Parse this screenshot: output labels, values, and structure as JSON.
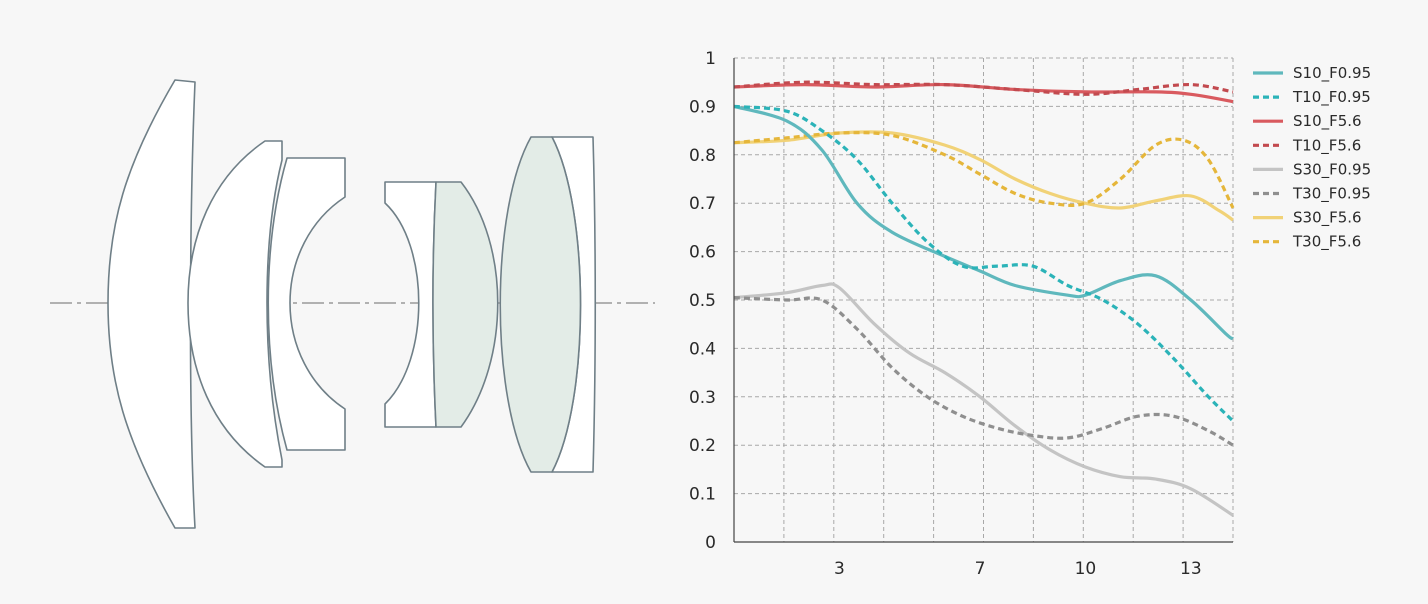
{
  "chart_data": {
    "type": "line",
    "title": "",
    "xlabel": "",
    "ylabel": "",
    "xlim": [
      0,
      14.2
    ],
    "ylim": [
      0,
      1
    ],
    "x_tick_labels": [
      {
        "value": 3,
        "label": "3"
      },
      {
        "value": 7,
        "label": "7"
      },
      {
        "value": 10,
        "label": "10"
      },
      {
        "value": 13,
        "label": "13"
      }
    ],
    "y_tick_labels": [
      {
        "value": 0,
        "label": "0"
      },
      {
        "value": 0.1,
        "label": "0.1"
      },
      {
        "value": 0.2,
        "label": "0.2"
      },
      {
        "value": 0.3,
        "label": "0.3"
      },
      {
        "value": 0.4,
        "label": "0.4"
      },
      {
        "value": 0.5,
        "label": "0.5"
      },
      {
        "value": 0.6,
        "label": "0.6"
      },
      {
        "value": 0.7,
        "label": "0.7"
      },
      {
        "value": 0.8,
        "label": "0.8"
      },
      {
        "value": 0.9,
        "label": "0.9"
      },
      {
        "value": 1,
        "label": "1"
      }
    ],
    "grid": true,
    "legend_position": "right",
    "series": [
      {
        "name": "S10_F0.95",
        "color": "#5fb8bd",
        "dash": false,
        "points": [
          [
            0,
            0.9
          ],
          [
            1.5,
            0.87
          ],
          [
            2.5,
            0.81
          ],
          [
            3.5,
            0.7
          ],
          [
            4.5,
            0.64
          ],
          [
            6,
            0.59
          ],
          [
            7,
            0.56
          ],
          [
            8,
            0.53
          ],
          [
            9.5,
            0.51
          ],
          [
            10,
            0.51
          ],
          [
            11,
            0.54
          ],
          [
            12,
            0.55
          ],
          [
            13,
            0.5
          ],
          [
            14,
            0.43
          ],
          [
            14.2,
            0.42
          ]
        ]
      },
      {
        "name": "T10_F0.95",
        "color": "#2bb3b8",
        "dash": true,
        "points": [
          [
            0,
            0.9
          ],
          [
            1.5,
            0.89
          ],
          [
            2.5,
            0.85
          ],
          [
            3.5,
            0.79
          ],
          [
            4.5,
            0.7
          ],
          [
            5.5,
            0.62
          ],
          [
            6.5,
            0.57
          ],
          [
            7.5,
            0.57
          ],
          [
            8.5,
            0.57
          ],
          [
            9.5,
            0.53
          ],
          [
            10.5,
            0.5
          ],
          [
            11.5,
            0.45
          ],
          [
            12.5,
            0.38
          ],
          [
            13.5,
            0.3
          ],
          [
            14.2,
            0.25
          ]
        ]
      },
      {
        "name": "S10_F5.6",
        "color": "#d95a5f",
        "dash": false,
        "points": [
          [
            0,
            0.94
          ],
          [
            2,
            0.945
          ],
          [
            4,
            0.94
          ],
          [
            6,
            0.945
          ],
          [
            8,
            0.935
          ],
          [
            10,
            0.93
          ],
          [
            12,
            0.93
          ],
          [
            13,
            0.925
          ],
          [
            14.2,
            0.91
          ]
        ]
      },
      {
        "name": "T10_F5.6",
        "color": "#c24a4f",
        "dash": true,
        "points": [
          [
            0,
            0.94
          ],
          [
            2,
            0.95
          ],
          [
            4,
            0.945
          ],
          [
            6,
            0.945
          ],
          [
            8,
            0.935
          ],
          [
            10,
            0.925
          ],
          [
            11.5,
            0.935
          ],
          [
            13,
            0.945
          ],
          [
            14.2,
            0.93
          ]
        ]
      },
      {
        "name": "S30_F0.95",
        "color": "#c4c4c4",
        "dash": false,
        "points": [
          [
            0,
            0.505
          ],
          [
            1.5,
            0.515
          ],
          [
            2.5,
            0.53
          ],
          [
            3,
            0.525
          ],
          [
            4,
            0.45
          ],
          [
            5,
            0.39
          ],
          [
            6,
            0.35
          ],
          [
            7,
            0.3
          ],
          [
            8,
            0.24
          ],
          [
            9,
            0.19
          ],
          [
            10,
            0.155
          ],
          [
            11,
            0.135
          ],
          [
            12,
            0.13
          ],
          [
            13,
            0.11
          ],
          [
            14.2,
            0.055
          ]
        ]
      },
      {
        "name": "T30_F0.95",
        "color": "#8f8f8f",
        "dash": true,
        "points": [
          [
            0,
            0.505
          ],
          [
            1.5,
            0.5
          ],
          [
            2.5,
            0.5
          ],
          [
            3.5,
            0.44
          ],
          [
            4.5,
            0.36
          ],
          [
            5.5,
            0.3
          ],
          [
            6.5,
            0.26
          ],
          [
            7.5,
            0.235
          ],
          [
            8.5,
            0.22
          ],
          [
            9.5,
            0.215
          ],
          [
            10.5,
            0.235
          ],
          [
            11.5,
            0.26
          ],
          [
            12.5,
            0.26
          ],
          [
            13.5,
            0.23
          ],
          [
            14.2,
            0.2
          ]
        ]
      },
      {
        "name": "S30_F5.6",
        "color": "#f1d277",
        "dash": false,
        "points": [
          [
            0,
            0.825
          ],
          [
            1.5,
            0.83
          ],
          [
            3,
            0.845
          ],
          [
            4.5,
            0.845
          ],
          [
            6,
            0.82
          ],
          [
            7,
            0.79
          ],
          [
            8,
            0.75
          ],
          [
            9,
            0.72
          ],
          [
            10,
            0.7
          ],
          [
            11,
            0.69
          ],
          [
            12,
            0.705
          ],
          [
            13,
            0.715
          ],
          [
            13.8,
            0.685
          ],
          [
            14.2,
            0.665
          ]
        ]
      },
      {
        "name": "T30_F5.6",
        "color": "#e5b63a",
        "dash": true,
        "points": [
          [
            0,
            0.825
          ],
          [
            1.5,
            0.835
          ],
          [
            3,
            0.845
          ],
          [
            4.5,
            0.84
          ],
          [
            6,
            0.8
          ],
          [
            7,
            0.76
          ],
          [
            8,
            0.72
          ],
          [
            9,
            0.7
          ],
          [
            10,
            0.7
          ],
          [
            11,
            0.75
          ],
          [
            12,
            0.82
          ],
          [
            12.8,
            0.83
          ],
          [
            13.5,
            0.79
          ],
          [
            14.2,
            0.69
          ]
        ]
      }
    ]
  },
  "lens_diagram": {
    "outline_color": "#6f7f87",
    "glass_fill": "#ffffff",
    "tinted_fill": "#e3ece7",
    "axis_color": "#9a9a9a"
  }
}
